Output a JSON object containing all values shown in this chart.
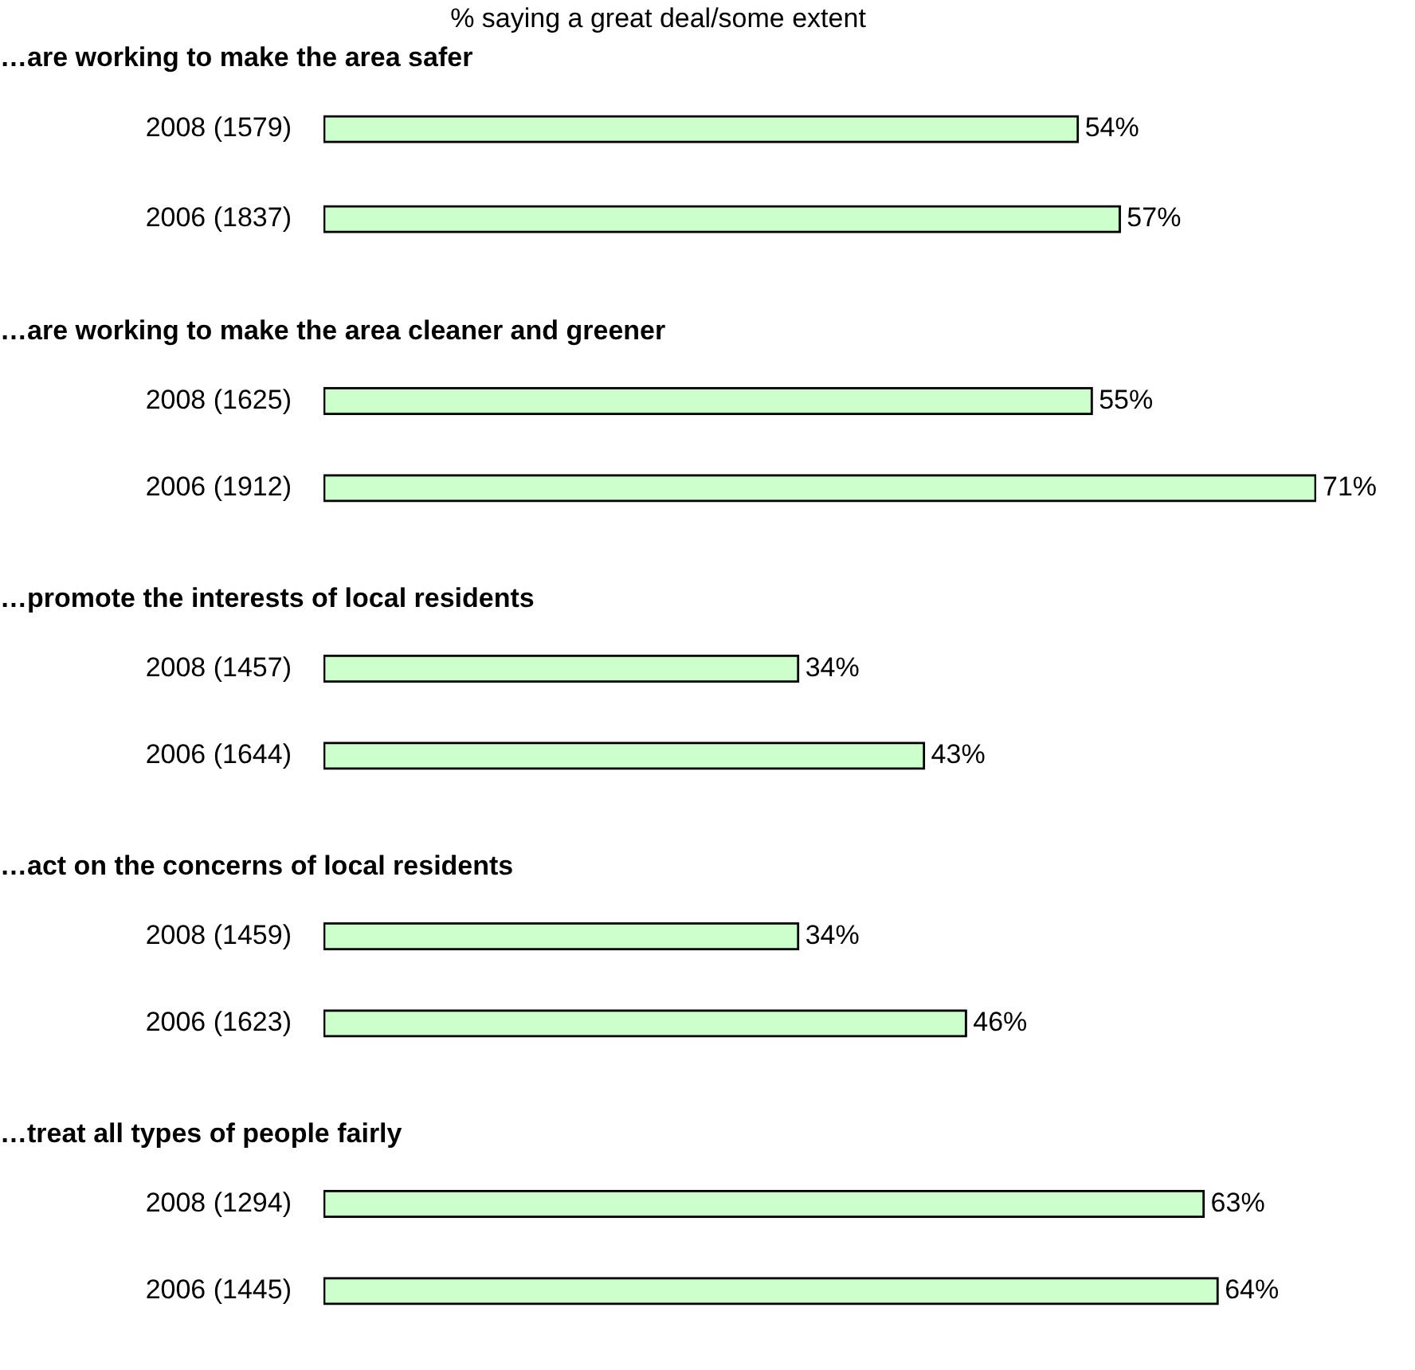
{
  "chart_data": [
    {
      "type": "bar",
      "orientation": "horizontal",
      "title": "% saying a great deal/some extent",
      "subtitle": "…are working to make the area safer",
      "categories": [
        "2008 (1579)",
        "2006 (1837)"
      ],
      "values": [
        54,
        57
      ],
      "value_labels": [
        "54%",
        "57%"
      ],
      "color": "#ccffcc",
      "tick_labels": "y"
    },
    {
      "type": "bar",
      "orientation": "horizontal",
      "title": "…are working to make the area cleaner and greener",
      "categories": [
        "2008 (1625)",
        "2006 (1912)"
      ],
      "values": [
        55,
        71
      ],
      "value_labels": [
        "55%",
        "71%"
      ],
      "color": "#ccffcc",
      "tick_labels": "y"
    },
    {
      "type": "bar",
      "orientation": "horizontal",
      "title": "…promote the interests of local residents",
      "categories": [
        "2008 (1457)",
        "2006 (1644)"
      ],
      "values": [
        34,
        43
      ],
      "value_labels": [
        "34%",
        "43%"
      ],
      "color": "#ccffcc",
      "tick_labels": "y"
    },
    {
      "type": "bar",
      "orientation": "horizontal",
      "title": "…act on the concerns of local residents",
      "categories": [
        "2008 (1459)",
        "2006 (1623)"
      ],
      "values": [
        34,
        46
      ],
      "value_labels": [
        "34%",
        "46%"
      ],
      "color": "#ccffcc",
      "tick_labels": "y"
    },
    {
      "type": "bar",
      "orientation": "horizontal",
      "title": "…treat all types of people fairly",
      "categories": [
        "2008 (1294)",
        "2006 (1445)"
      ],
      "values": [
        63,
        64
      ],
      "value_labels": [
        "63%",
        "64%"
      ],
      "color": "#ccffcc",
      "tick_labels": "y"
    }
  ]
}
